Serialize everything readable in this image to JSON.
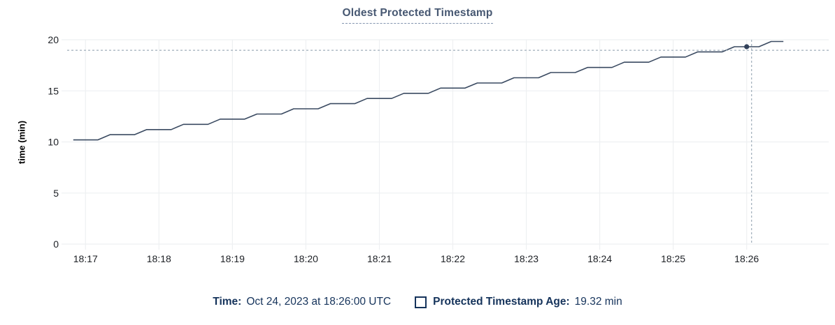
{
  "title": "Oldest Protected Timestamp",
  "colors": {
    "accent_title": "#475872",
    "title_underline": "#8395af",
    "line": "#3a4a61",
    "dot": "#32415a",
    "grid": "#eef0f2",
    "crosshair": "#9fadba",
    "tick_label": "#1d2025",
    "legend_text": "#15335b"
  },
  "legend": {
    "time_label": "Time:",
    "time_value": "Oct 24, 2023 at 18:26:00 UTC",
    "series_label": "Protected Timestamp Age:",
    "series_value": "19.32 min"
  },
  "chart_data": {
    "type": "line",
    "title": "Oldest Protected Timestamp",
    "xlabel": "",
    "ylabel": "time (min)",
    "ylim": [
      0,
      20
    ],
    "yticks": [
      0,
      5,
      10,
      15,
      20
    ],
    "grid": true,
    "legend_position": "bottom",
    "x_domain_seconds": [
      -15,
      607
    ],
    "x_seconds_origin_label": "18:17",
    "xticks": [
      {
        "label": "18:17",
        "t": 0
      },
      {
        "label": "18:18",
        "t": 60
      },
      {
        "label": "18:19",
        "t": 120
      },
      {
        "label": "18:20",
        "t": 180
      },
      {
        "label": "18:21",
        "t": 240
      },
      {
        "label": "18:22",
        "t": 300
      },
      {
        "label": "18:23",
        "t": 360
      },
      {
        "label": "18:24",
        "t": 420
      },
      {
        "label": "18:25",
        "t": 480
      },
      {
        "label": "18:26",
        "t": 540
      }
    ],
    "series": [
      {
        "name": "Protected Timestamp Age",
        "unit": "min",
        "points": [
          [
            -10,
            10.2
          ],
          [
            10,
            10.2
          ],
          [
            20,
            10.71
          ],
          [
            40,
            10.71
          ],
          [
            50,
            11.21
          ],
          [
            70,
            11.21
          ],
          [
            80,
            11.72
          ],
          [
            100,
            11.72
          ],
          [
            110,
            12.23
          ],
          [
            130,
            12.23
          ],
          [
            140,
            12.73
          ],
          [
            160,
            12.73
          ],
          [
            170,
            13.24
          ],
          [
            190,
            13.24
          ],
          [
            200,
            13.75
          ],
          [
            220,
            13.75
          ],
          [
            230,
            14.25
          ],
          [
            250,
            14.25
          ],
          [
            260,
            14.76
          ],
          [
            280,
            14.76
          ],
          [
            290,
            15.27
          ],
          [
            310,
            15.27
          ],
          [
            320,
            15.77
          ],
          [
            340,
            15.77
          ],
          [
            350,
            16.28
          ],
          [
            370,
            16.28
          ],
          [
            380,
            16.79
          ],
          [
            400,
            16.79
          ],
          [
            410,
            17.29
          ],
          [
            430,
            17.29
          ],
          [
            440,
            17.8
          ],
          [
            460,
            17.8
          ],
          [
            470,
            18.31
          ],
          [
            490,
            18.31
          ],
          [
            500,
            18.81
          ],
          [
            520,
            18.81
          ],
          [
            530,
            19.32
          ],
          [
            550,
            19.32
          ],
          [
            560,
            19.83
          ],
          [
            570,
            19.83
          ]
        ]
      }
    ],
    "crosshair": {
      "t_seconds": 544,
      "y_value": 18.97
    },
    "highlight": {
      "t_seconds": 540,
      "value": 19.32,
      "time": "18:26:00",
      "label": "19.32 min"
    }
  }
}
